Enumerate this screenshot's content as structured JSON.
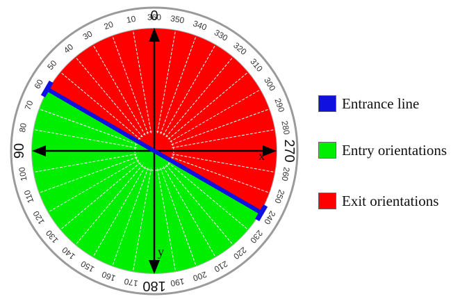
{
  "diagram": {
    "minor_labels": [
      "10",
      "20",
      "30",
      "40",
      "50",
      "60",
      "70",
      "80",
      "100",
      "110",
      "120",
      "130",
      "140",
      "150",
      "160",
      "170",
      "190",
      "200",
      "210",
      "220",
      "230",
      "240",
      "250",
      "260",
      "280",
      "290",
      "300",
      "310",
      "320",
      "330",
      "340",
      "350",
      "360"
    ],
    "major_labels": [
      "0",
      "90",
      "180",
      "270"
    ],
    "axis_labels": {
      "x": "x",
      "y": "y"
    },
    "regions": {
      "entry_color": "#00ee00",
      "exit_color": "#ff0000",
      "entrance_line_color": "#1010e0"
    },
    "entrance_line_angle_deg": 60
  },
  "legend": {
    "items": [
      {
        "label": "Entrance line",
        "color": "#1010e0"
      },
      {
        "label": "Entry orientations",
        "color": "#00ee00"
      },
      {
        "label": "Exit orientations",
        "color": "#ff0000"
      }
    ]
  }
}
